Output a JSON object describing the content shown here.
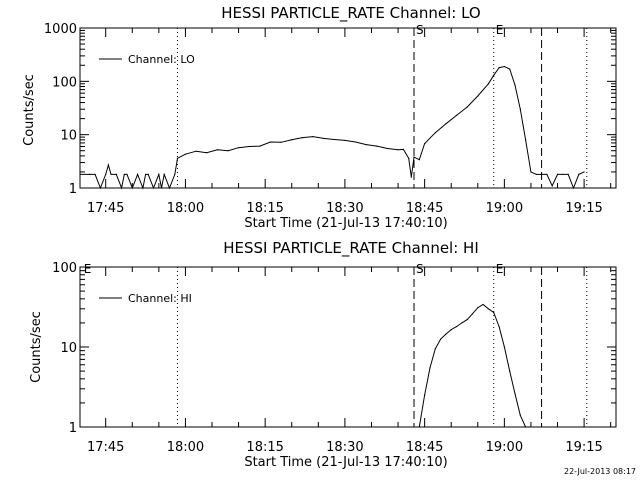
{
  "chart_data": [
    {
      "type": "line",
      "title": "HESSI PARTICLE_RATE Channel: LO",
      "xlabel": "Start Time (21-Jul-13 17:40:10)",
      "ylabel": "Counts/sec",
      "yscale": "log",
      "ylim": [
        1,
        1000
      ],
      "xlim": [
        "17:40:10",
        "19:21:00"
      ],
      "x_ticks": [
        "17:45",
        "18:00",
        "18:15",
        "18:30",
        "18:45",
        "19:00",
        "19:15"
      ],
      "y_ticks": [
        "1",
        "10",
        "100",
        "1000"
      ],
      "legend": {
        "label": "Channel: LO",
        "placement": "top-left"
      },
      "markers": [
        {
          "label": "",
          "time": "17:58:30",
          "style": "dotted"
        },
        {
          "label": "S",
          "time": "18:43:00",
          "style": "dashed"
        },
        {
          "label": "E",
          "time": "18:58:00",
          "style": "dotted"
        },
        {
          "label": "",
          "time": "19:07:00",
          "style": "dashed"
        },
        {
          "label": "",
          "time": "19:15:30",
          "style": "dotted"
        }
      ],
      "series": [
        {
          "name": "Channel: LO",
          "x": [
            "17:40:10",
            "17:42:00",
            "17:43:00",
            "17:44:00",
            "17:45:00",
            "17:45:30",
            "17:46:00",
            "17:47:00",
            "17:48:00",
            "17:48:30",
            "17:49:00",
            "17:50:00",
            "17:51:00",
            "17:52:00",
            "17:52:30",
            "17:53:00",
            "17:54:00",
            "17:55:00",
            "17:55:30",
            "17:56:00",
            "17:57:00",
            "17:58:00",
            "17:58:30",
            "18:00:00",
            "18:02:00",
            "18:04:00",
            "18:06:00",
            "18:08:00",
            "18:10:00",
            "18:12:00",
            "18:14:00",
            "18:16:00",
            "18:18:00",
            "18:20:00",
            "18:22:00",
            "18:24:00",
            "18:26:00",
            "18:28:00",
            "18:30:00",
            "18:32:00",
            "18:34:00",
            "18:36:00",
            "18:38:00",
            "18:40:00",
            "18:41:00",
            "18:42:00",
            "18:42:30",
            "18:43:00",
            "18:44:00",
            "18:45:00",
            "18:47:00",
            "18:49:00",
            "18:51:00",
            "18:53:00",
            "18:55:00",
            "18:57:00",
            "18:58:00",
            "18:59:00",
            "19:00:00",
            "19:01:00",
            "19:02:00",
            "19:03:00",
            "19:04:00",
            "19:05:00",
            "19:06:00",
            "19:07:00",
            "19:08:00",
            "19:09:00",
            "19:10:00",
            "19:11:00",
            "19:12:00",
            "19:13:00",
            "19:14:00",
            "19:15:00"
          ],
          "y": [
            1.8,
            1.8,
            1.8,
            1,
            1.8,
            2.7,
            1.8,
            1.8,
            1,
            1.8,
            1.8,
            1,
            1.8,
            1,
            1.8,
            1.8,
            1,
            1.8,
            1,
            1.8,
            1,
            1.8,
            3.6,
            4.3,
            4.9,
            4.6,
            5.2,
            5.0,
            5.7,
            6.0,
            6.1,
            7.3,
            7.2,
            8.0,
            8.8,
            9.2,
            8.5,
            8.1,
            7.8,
            7.3,
            6.5,
            6.1,
            5.5,
            5.2,
            5.3,
            3.6,
            1.6,
            3.8,
            3.4,
            6.8,
            10.9,
            16,
            23,
            33,
            53,
            90,
            130,
            180,
            190,
            170,
            85,
            30,
            8,
            2.0,
            1.8,
            1.8,
            1.8,
            1.1,
            1.8,
            1.8,
            1.8,
            1.0,
            1.8,
            2.0
          ]
        }
      ]
    },
    {
      "type": "line",
      "title": "HESSI PARTICLE_RATE Channel: HI",
      "xlabel": "Start Time (21-Jul-13 17:40:10)",
      "ylabel": "Counts/sec",
      "yscale": "log",
      "ylim": [
        1,
        100
      ],
      "xlim": [
        "17:40:10",
        "19:21:00"
      ],
      "x_ticks": [
        "17:45",
        "18:00",
        "18:15",
        "18:30",
        "18:45",
        "19:00",
        "19:15"
      ],
      "y_ticks": [
        "1",
        "10",
        "100"
      ],
      "legend": {
        "label": "Channel: HI",
        "placement": "top-left"
      },
      "markers": [
        {
          "label": "E",
          "time": "17:40:30",
          "style": "none"
        },
        {
          "label": "",
          "time": "17:58:30",
          "style": "dotted"
        },
        {
          "label": "S",
          "time": "18:43:00",
          "style": "dashed"
        },
        {
          "label": "E",
          "time": "18:58:00",
          "style": "dotted"
        },
        {
          "label": "",
          "time": "19:07:00",
          "style": "dashed"
        },
        {
          "label": "",
          "time": "19:15:30",
          "style": "dotted"
        }
      ],
      "series": [
        {
          "name": "Channel: HI",
          "x": [
            "18:44:00",
            "18:45:00",
            "18:46:00",
            "18:47:00",
            "18:48:00",
            "18:49:00",
            "18:50:00",
            "18:51:00",
            "18:52:00",
            "18:53:00",
            "18:54:00",
            "18:55:00",
            "18:56:00",
            "18:57:00",
            "18:58:00",
            "18:59:00",
            "19:00:00",
            "19:01:00",
            "19:02:00",
            "19:03:00",
            "19:04:00"
          ],
          "y": [
            1.0,
            2.5,
            5.5,
            9.5,
            12.5,
            14.5,
            16.5,
            18,
            20,
            22,
            26,
            31,
            34,
            30,
            27,
            18,
            10,
            5,
            2.6,
            1.4,
            1.0
          ]
        }
      ]
    }
  ],
  "timestamp": "22-Jul-2013 08:17"
}
